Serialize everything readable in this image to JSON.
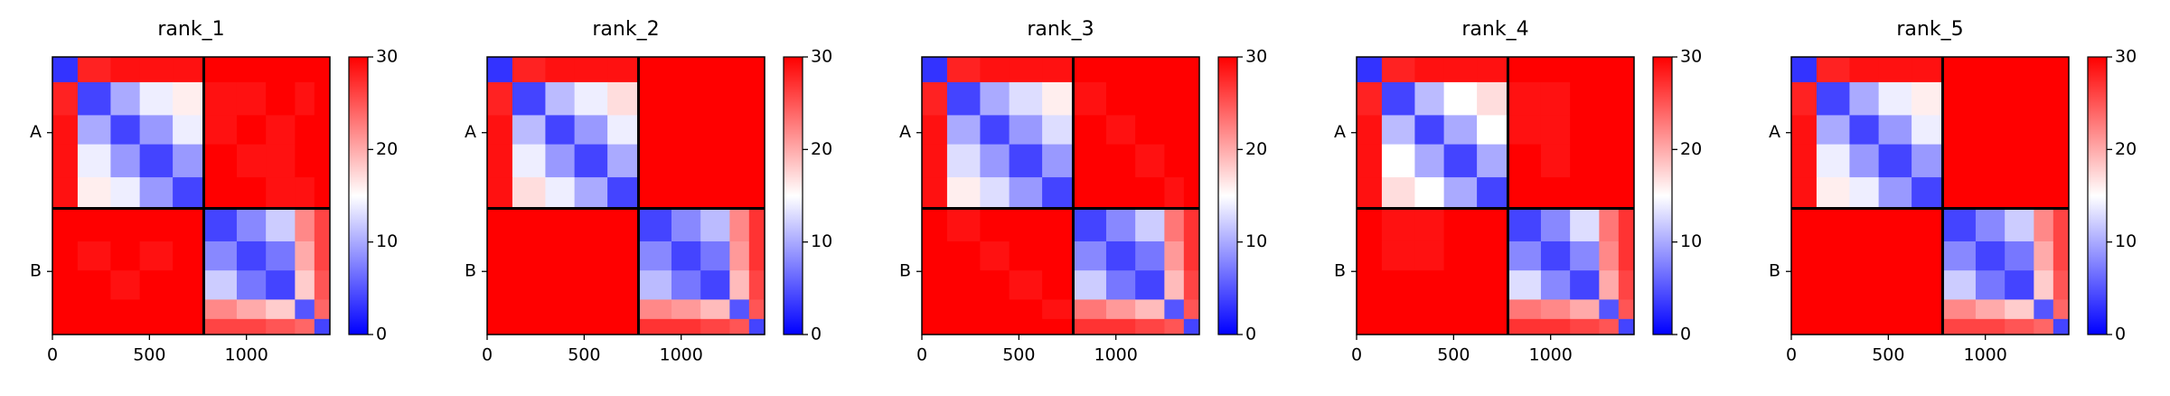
{
  "chart_data": [
    {
      "type": "heatmap",
      "title": "rank_1",
      "colormap": "bwr",
      "bins": [
        0,
        130,
        300,
        450,
        620,
        780,
        950,
        1100,
        1250,
        1350,
        1430
      ],
      "xlim": [
        0,
        1430
      ],
      "ylim": [
        1430,
        0
      ],
      "xticks": [
        0,
        500,
        1000
      ],
      "yticks": [
        {
          "value": 390,
          "label": "A"
        },
        {
          "value": 1105,
          "label": "B"
        }
      ],
      "boundaries": [
        780
      ],
      "clim": [
        0,
        30
      ],
      "cticks": [
        0,
        10,
        20,
        30
      ],
      "z": [
        [
          3,
          28,
          29,
          29,
          29,
          30,
          30,
          30,
          30,
          30
        ],
        [
          28,
          4,
          10,
          14,
          16,
          29,
          29,
          30,
          29,
          30
        ],
        [
          29,
          10,
          4,
          9,
          14,
          29,
          30,
          29,
          30,
          30
        ],
        [
          29,
          14,
          9,
          4,
          9,
          30,
          29,
          29,
          30,
          30
        ],
        [
          29,
          16,
          14,
          9,
          4,
          30,
          30,
          29,
          29,
          30
        ],
        [
          30,
          30,
          30,
          30,
          30,
          4,
          8,
          12,
          22,
          26
        ],
        [
          30,
          29,
          30,
          29,
          30,
          8,
          4,
          7,
          20,
          26
        ],
        [
          30,
          30,
          29,
          30,
          30,
          12,
          7,
          4,
          18,
          25
        ],
        [
          30,
          30,
          30,
          30,
          30,
          22,
          20,
          18,
          5,
          24
        ],
        [
          30,
          30,
          30,
          30,
          30,
          26,
          26,
          25,
          24,
          4
        ]
      ]
    },
    {
      "type": "heatmap",
      "title": "rank_2",
      "colormap": "bwr",
      "bins": [
        0,
        130,
        300,
        450,
        620,
        780,
        950,
        1100,
        1250,
        1350,
        1430
      ],
      "xlim": [
        0,
        1430
      ],
      "ylim": [
        1430,
        0
      ],
      "xticks": [
        0,
        500,
        1000
      ],
      "yticks": [
        {
          "value": 390,
          "label": "A"
        },
        {
          "value": 1105,
          "label": "B"
        }
      ],
      "boundaries": [
        780
      ],
      "clim": [
        0,
        30
      ],
      "cticks": [
        0,
        10,
        20,
        30
      ],
      "z": [
        [
          3,
          28,
          29,
          29,
          29,
          30,
          30,
          30,
          30,
          30
        ],
        [
          28,
          4,
          11,
          14,
          17,
          30,
          30,
          30,
          30,
          30
        ],
        [
          29,
          11,
          4,
          9,
          14,
          30,
          30,
          30,
          30,
          30
        ],
        [
          29,
          14,
          9,
          4,
          10,
          30,
          30,
          30,
          30,
          30
        ],
        [
          29,
          17,
          14,
          10,
          4,
          30,
          30,
          30,
          30,
          30
        ],
        [
          30,
          30,
          30,
          30,
          30,
          4,
          8,
          11,
          22,
          27
        ],
        [
          30,
          30,
          30,
          30,
          30,
          8,
          4,
          7,
          21,
          27
        ],
        [
          30,
          30,
          30,
          30,
          30,
          11,
          7,
          4,
          19,
          26
        ],
        [
          30,
          30,
          30,
          30,
          30,
          22,
          21,
          19,
          5,
          25
        ],
        [
          30,
          30,
          30,
          30,
          30,
          27,
          27,
          26,
          25,
          4
        ]
      ]
    },
    {
      "type": "heatmap",
      "title": "rank_3",
      "colormap": "bwr",
      "bins": [
        0,
        130,
        300,
        450,
        620,
        780,
        950,
        1100,
        1250,
        1350,
        1430
      ],
      "xlim": [
        0,
        1430
      ],
      "ylim": [
        1430,
        0
      ],
      "xticks": [
        0,
        500,
        1000
      ],
      "yticks": [
        {
          "value": 390,
          "label": "A"
        },
        {
          "value": 1105,
          "label": "B"
        }
      ],
      "boundaries": [
        780
      ],
      "clim": [
        0,
        30
      ],
      "cticks": [
        0,
        10,
        20,
        30
      ],
      "z": [
        [
          3,
          28,
          29,
          29,
          29,
          30,
          30,
          30,
          30,
          30
        ],
        [
          28,
          4,
          10,
          13,
          16,
          29,
          30,
          30,
          30,
          30
        ],
        [
          29,
          10,
          4,
          9,
          13,
          30,
          29,
          30,
          30,
          30
        ],
        [
          29,
          13,
          9,
          4,
          9,
          30,
          30,
          29,
          30,
          30
        ],
        [
          29,
          16,
          13,
          9,
          4,
          30,
          30,
          30,
          29,
          30
        ],
        [
          30,
          29,
          30,
          30,
          30,
          4,
          8,
          12,
          23,
          27
        ],
        [
          30,
          30,
          29,
          30,
          30,
          8,
          4,
          7,
          21,
          27
        ],
        [
          30,
          30,
          30,
          29,
          30,
          12,
          7,
          4,
          19,
          26
        ],
        [
          30,
          30,
          30,
          30,
          29,
          23,
          21,
          19,
          5,
          25
        ],
        [
          30,
          30,
          30,
          30,
          30,
          27,
          27,
          26,
          25,
          4
        ]
      ]
    },
    {
      "type": "heatmap",
      "title": "rank_4",
      "colormap": "bwr",
      "bins": [
        0,
        130,
        300,
        450,
        620,
        780,
        950,
        1100,
        1250,
        1350,
        1430
      ],
      "xlim": [
        0,
        1430
      ],
      "ylim": [
        1430,
        0
      ],
      "xticks": [
        0,
        500,
        1000
      ],
      "yticks": [
        {
          "value": 390,
          "label": "A"
        },
        {
          "value": 1105,
          "label": "B"
        }
      ],
      "boundaries": [
        780
      ],
      "clim": [
        0,
        30
      ],
      "cticks": [
        0,
        10,
        20,
        30
      ],
      "z": [
        [
          3,
          28,
          29,
          29,
          29,
          30,
          30,
          30,
          30,
          30
        ],
        [
          28,
          4,
          11,
          15,
          17,
          29,
          29,
          30,
          30,
          30
        ],
        [
          29,
          11,
          4,
          10,
          15,
          29,
          29,
          30,
          30,
          30
        ],
        [
          29,
          15,
          10,
          4,
          10,
          30,
          29,
          30,
          30,
          30
        ],
        [
          29,
          17,
          15,
          10,
          4,
          30,
          30,
          30,
          30,
          30
        ],
        [
          30,
          29,
          29,
          30,
          30,
          4,
          8,
          13,
          23,
          27
        ],
        [
          30,
          29,
          29,
          30,
          30,
          8,
          4,
          8,
          22,
          27
        ],
        [
          30,
          30,
          30,
          30,
          30,
          13,
          8,
          4,
          20,
          26
        ],
        [
          30,
          30,
          30,
          30,
          30,
          23,
          22,
          20,
          5,
          25
        ],
        [
          30,
          30,
          30,
          30,
          30,
          27,
          27,
          26,
          25,
          4
        ]
      ]
    },
    {
      "type": "heatmap",
      "title": "rank_5",
      "colormap": "bwr",
      "bins": [
        0,
        130,
        300,
        450,
        620,
        780,
        950,
        1100,
        1250,
        1350,
        1430
      ],
      "xlim": [
        0,
        1430
      ],
      "ylim": [
        1430,
        0
      ],
      "xticks": [
        0,
        500,
        1000
      ],
      "yticks": [
        {
          "value": 390,
          "label": "A"
        },
        {
          "value": 1105,
          "label": "B"
        }
      ],
      "boundaries": [
        780
      ],
      "clim": [
        0,
        30
      ],
      "cticks": [
        0,
        10,
        20,
        30
      ],
      "z": [
        [
          3,
          28,
          29,
          29,
          29,
          30,
          30,
          30,
          30,
          30
        ],
        [
          28,
          4,
          10,
          14,
          16,
          30,
          30,
          30,
          30,
          30
        ],
        [
          29,
          10,
          4,
          9,
          14,
          30,
          30,
          30,
          30,
          30
        ],
        [
          29,
          14,
          9,
          4,
          9,
          30,
          30,
          30,
          30,
          30
        ],
        [
          29,
          16,
          14,
          9,
          4,
          30,
          30,
          30,
          30,
          30
        ],
        [
          30,
          30,
          30,
          30,
          30,
          4,
          8,
          12,
          22,
          26
        ],
        [
          30,
          30,
          30,
          30,
          30,
          8,
          4,
          7,
          20,
          26
        ],
        [
          30,
          30,
          30,
          30,
          30,
          12,
          7,
          4,
          18,
          25
        ],
        [
          30,
          30,
          30,
          30,
          30,
          22,
          20,
          18,
          5,
          24
        ],
        [
          30,
          30,
          30,
          30,
          30,
          26,
          26,
          25,
          24,
          4
        ]
      ]
    }
  ]
}
